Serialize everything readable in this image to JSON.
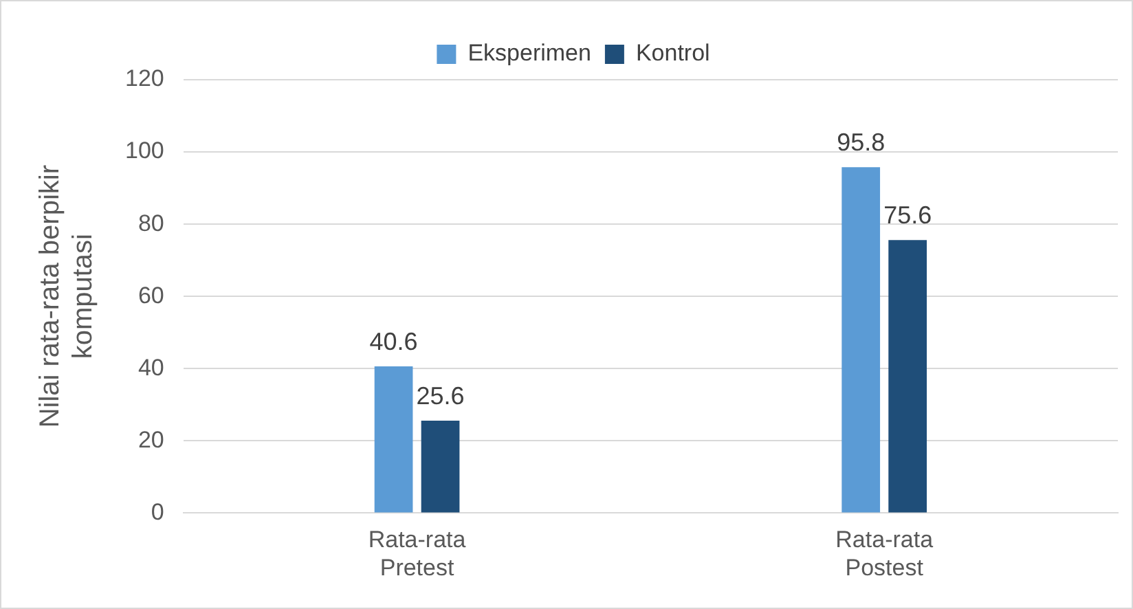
{
  "chart_data": {
    "type": "bar",
    "ylabel": "Nilai rata-rata berpikir komputasi",
    "categories": [
      "Rata-rata Pretest",
      "Rata-rata Postest"
    ],
    "series": [
      {
        "name": "Eksperimen",
        "color": "#5b9bd5",
        "values": [
          40.6,
          95.8
        ]
      },
      {
        "name": "Kontrol",
        "color": "#1f4e79",
        "values": [
          25.6,
          75.6
        ]
      }
    ],
    "ylim": [
      0,
      120
    ],
    "yticks": [
      0,
      20,
      40,
      60,
      80,
      100,
      120
    ],
    "grid": "y",
    "legend": "top",
    "data_labels": true
  }
}
